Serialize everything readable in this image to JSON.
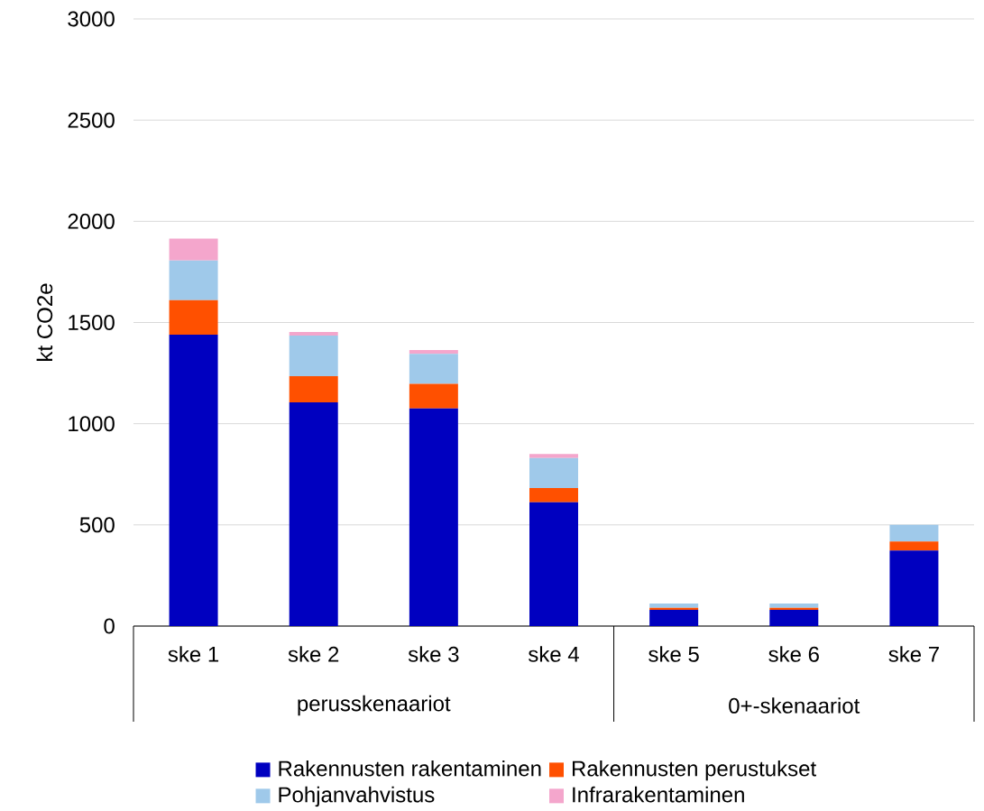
{
  "chart_data": {
    "type": "bar",
    "stacked": true,
    "ylabel": "kt CO2e",
    "categories": [
      "ske 1",
      "ske 2",
      "ske 3",
      "ske 4",
      "ske 5",
      "ske 6",
      "ske 7"
    ],
    "series": [
      {
        "name": "Rakennusten rakentaminen",
        "color": "#0000c0",
        "values": [
          1440,
          1105,
          1075,
          612,
          80,
          80,
          373
        ]
      },
      {
        "name": "Rakennusten perustukset",
        "color": "#ff5000",
        "values": [
          170,
          130,
          122,
          70,
          10,
          10,
          45
        ]
      },
      {
        "name": "Pohjanvahvistus",
        "color": "#9fc9ea",
        "values": [
          197,
          200,
          148,
          148,
          21,
          21,
          82
        ]
      },
      {
        "name": "Infrarakentaminen",
        "color": "#f4a6cc",
        "values": [
          108,
          18,
          19,
          20,
          0,
          0,
          0
        ]
      }
    ],
    "annotations": [
      "perusskenaariot",
      "0+-skenaariot"
    ],
    "ylim": [
      0,
      3000
    ],
    "yticks": [
      0,
      500,
      1000,
      1500,
      2000,
      2500,
      3000
    ],
    "grid": "y",
    "legend": "bottom"
  }
}
